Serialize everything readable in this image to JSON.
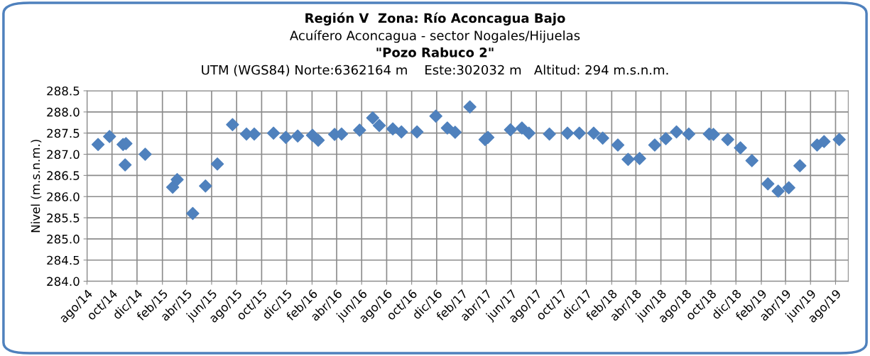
{
  "chart_data": {
    "type": "scatter",
    "title": "Región V  Zona: Río Aconcagua Bajo\nAcuífero Aconcagua - sector Nogales/Hijuelas\n\"Pozo Rabuco 2\"",
    "subtitle": "UTM (WGS84) Norte:6362164 m    Este:302032 m   Altitud: 294 m.s.n.m.",
    "ylabel": "Nivel (m.s.n.m.)",
    "x": [
      "2014-08-28",
      "2014-09-25",
      "2014-10-28",
      "2014-11-04",
      "2014-11-02",
      "2014-12-21",
      "2015-02-26",
      "2015-03-09",
      "2015-04-16",
      "2015-05-17",
      "2015-06-15",
      "2015-07-22",
      "2015-08-25",
      "2015-09-13",
      "2015-10-30",
      "2015-11-29",
      "2015-12-28",
      "2016-02-02",
      "2016-02-16",
      "2016-03-27",
      "2016-04-13",
      "2016-05-27",
      "2016-06-28",
      "2016-07-14",
      "2016-08-16",
      "2016-09-06",
      "2016-10-14",
      "2016-11-29",
      "2016-12-27",
      "2017-01-15",
      "2017-02-20",
      "2017-03-29",
      "2017-04-05",
      "2017-05-30",
      "2017-06-27",
      "2017-07-14",
      "2017-09-02",
      "2017-10-16",
      "2017-11-14",
      "2017-12-19",
      "2018-01-10",
      "2018-02-16",
      "2018-03-13",
      "2018-04-10",
      "2018-05-17",
      "2018-06-13",
      "2018-07-09",
      "2018-08-08",
      "2018-09-27",
      "2018-10-07",
      "2018-11-11",
      "2018-12-12",
      "2019-01-09",
      "2019-02-17",
      "2019-03-14",
      "2019-04-09",
      "2019-05-06",
      "2019-06-17",
      "2019-07-04",
      "2019-08-10"
    ],
    "series": [
      {
        "color": "#4f81bd",
        "values": [
          287.23,
          287.42,
          287.23,
          287.25,
          286.75,
          287.0,
          286.22,
          286.4,
          285.6,
          286.25,
          286.77,
          287.7,
          287.48,
          287.48,
          287.5,
          287.4,
          287.43,
          287.45,
          287.33,
          287.47,
          287.48,
          287.57,
          287.86,
          287.68,
          287.6,
          287.53,
          287.53,
          287.9,
          287.62,
          287.52,
          288.12,
          287.35,
          287.4,
          287.58,
          287.62,
          287.5,
          287.48,
          287.5,
          287.5,
          287.5,
          287.38,
          287.22,
          286.88,
          286.9,
          287.22,
          287.37,
          287.53,
          287.48,
          287.48,
          287.47,
          287.35,
          287.15,
          286.85,
          286.3,
          286.13,
          286.21,
          286.73,
          287.22,
          287.3,
          287.35
        ]
      }
    ],
    "ylim": [
      284.0,
      288.5
    ],
    "yticks": [
      {
        "value": 284.0,
        "label": "284.0"
      },
      {
        "value": 284.5,
        "label": "284.5"
      },
      {
        "value": 285.0,
        "label": "285.0"
      },
      {
        "value": 285.5,
        "label": "285.5"
      },
      {
        "value": 286.0,
        "label": "286.0"
      },
      {
        "value": 286.5,
        "label": "286.5"
      },
      {
        "value": 287.0,
        "label": "287.0"
      },
      {
        "value": 287.5,
        "label": "287.5"
      },
      {
        "value": 288.0,
        "label": "288.0"
      },
      {
        "value": 288.5,
        "label": "288.5"
      }
    ],
    "xlim": [
      "2014-08-01",
      "2019-09-01"
    ],
    "xticks": [
      {
        "value": "2014-08-01",
        "label": "ago/14"
      },
      {
        "value": "2014-10-01",
        "label": "oct/14"
      },
      {
        "value": "2014-12-01",
        "label": "dic/14"
      },
      {
        "value": "2015-02-01",
        "label": "feb/15"
      },
      {
        "value": "2015-04-01",
        "label": "abr/15"
      },
      {
        "value": "2015-06-01",
        "label": "jun/15"
      },
      {
        "value": "2015-08-01",
        "label": "ago/15"
      },
      {
        "value": "2015-10-01",
        "label": "oct/15"
      },
      {
        "value": "2015-12-01",
        "label": "dic/15"
      },
      {
        "value": "2016-02-01",
        "label": "feb/16"
      },
      {
        "value": "2016-04-01",
        "label": "abr/16"
      },
      {
        "value": "2016-06-01",
        "label": "jun/16"
      },
      {
        "value": "2016-08-01",
        "label": "ago/16"
      },
      {
        "value": "2016-10-01",
        "label": "oct/16"
      },
      {
        "value": "2016-12-01",
        "label": "dic/16"
      },
      {
        "value": "2017-02-01",
        "label": "feb/17"
      },
      {
        "value": "2017-04-01",
        "label": "abr/17"
      },
      {
        "value": "2017-06-01",
        "label": "jun/17"
      },
      {
        "value": "2017-08-01",
        "label": "ago/17"
      },
      {
        "value": "2017-10-01",
        "label": "oct/17"
      },
      {
        "value": "2017-12-01",
        "label": "dic/17"
      },
      {
        "value": "2018-02-01",
        "label": "feb/18"
      },
      {
        "value": "2018-04-01",
        "label": "abr/18"
      },
      {
        "value": "2018-06-01",
        "label": "jun/18"
      },
      {
        "value": "2018-08-01",
        "label": "ago/18"
      },
      {
        "value": "2018-10-01",
        "label": "oct/18"
      },
      {
        "value": "2018-12-01",
        "label": "dic/18"
      },
      {
        "value": "2019-02-01",
        "label": "feb/19"
      },
      {
        "value": "2019-04-01",
        "label": "abr/19"
      },
      {
        "value": "2019-06-01",
        "label": "jun/19"
      },
      {
        "value": "2019-08-01",
        "label": "ago/19"
      }
    ],
    "grid": true,
    "marker": "diamond"
  }
}
